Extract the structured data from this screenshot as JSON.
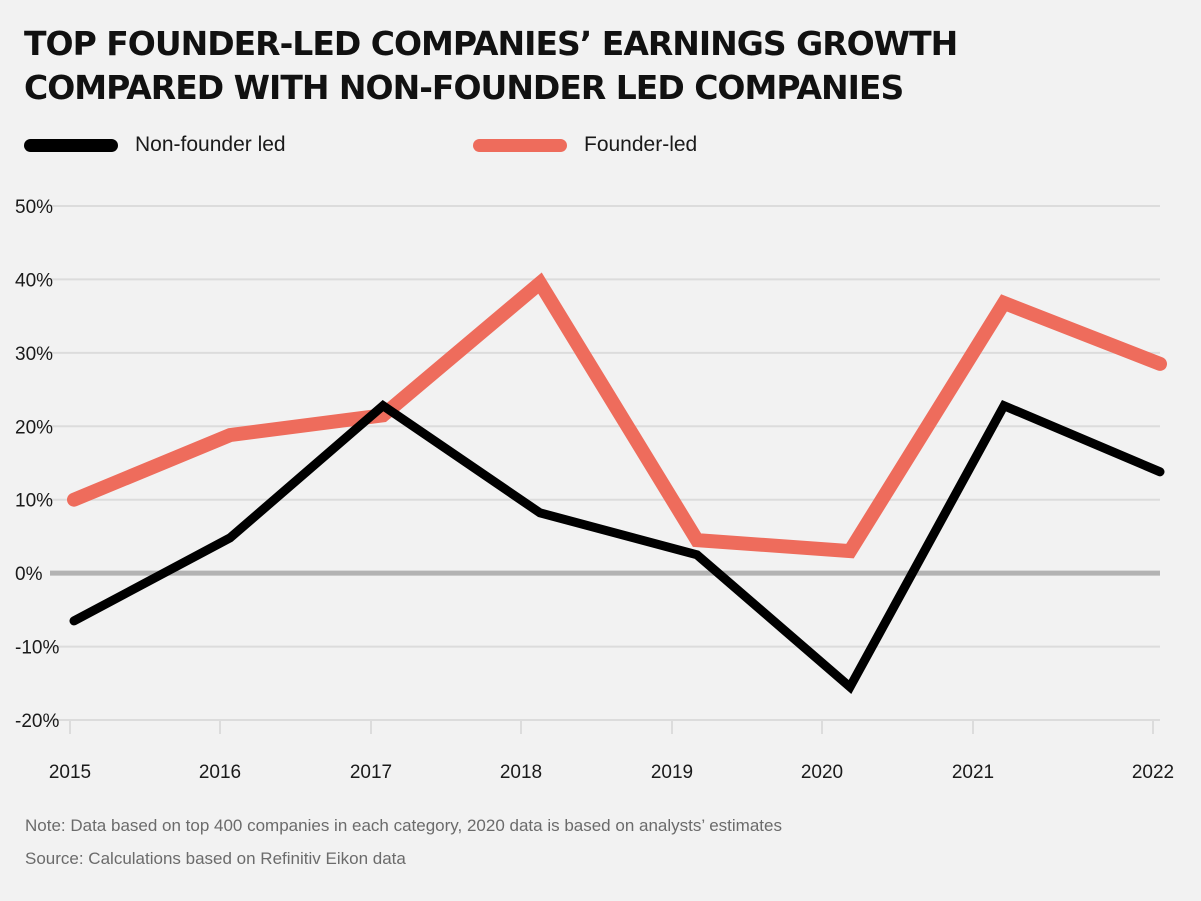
{
  "title_lines": [
    "TOP FOUNDER-LED COMPANIES’ EARNINGS GROWTH",
    "COMPARED WITH NON-FOUNDER LED COMPANIES"
  ],
  "legend": [
    {
      "label": "Non-founder led",
      "color": "#000000"
    },
    {
      "label": "Founder-led",
      "color": "#ee6c5c"
    }
  ],
  "colors": {
    "background": "#f2f2f2",
    "grid": "#dcdcdc",
    "zero_line": "#b3b3b3"
  },
  "chart_data": {
    "type": "line",
    "x": [
      "2015",
      "2016",
      "2017",
      "2018",
      "2019",
      "2020",
      "2021",
      "2022"
    ],
    "series": [
      {
        "name": "Non-founder led",
        "color": "#000000",
        "values": [
          -6.5,
          4.8,
          22.8,
          8.2,
          2.5,
          -15.5,
          22.8,
          13.8
        ]
      },
      {
        "name": "Founder-led",
        "color": "#ee6c5c",
        "values": [
          10.0,
          18.8,
          21.5,
          39.5,
          4.5,
          3.0,
          36.8,
          28.5
        ]
      }
    ],
    "y_ticks": [
      50,
      40,
      30,
      20,
      10,
      0,
      -10,
      -20
    ],
    "y_tick_labels": [
      "50%",
      "40%",
      "30%",
      "20%",
      "10%",
      "0%",
      "-10%",
      "-20%"
    ],
    "x_tick_labels": [
      "2015",
      "2016",
      "2017",
      "2018",
      "2019",
      "2020",
      "2021",
      "2022"
    ],
    "ylim": [
      -20,
      50
    ],
    "grid": true,
    "legend_position": "top-left",
    "title": "TOP FOUNDER-LED COMPANIES’ EARNINGS GROWTH COMPARED WITH NON-FOUNDER LED COMPANIES"
  },
  "notes": {
    "note": "Note: Data based on top 400 companies in each category, 2020 data is based on analysts’ estimates",
    "source": "Source: Calculations based on Refinitiv Eikon data"
  }
}
